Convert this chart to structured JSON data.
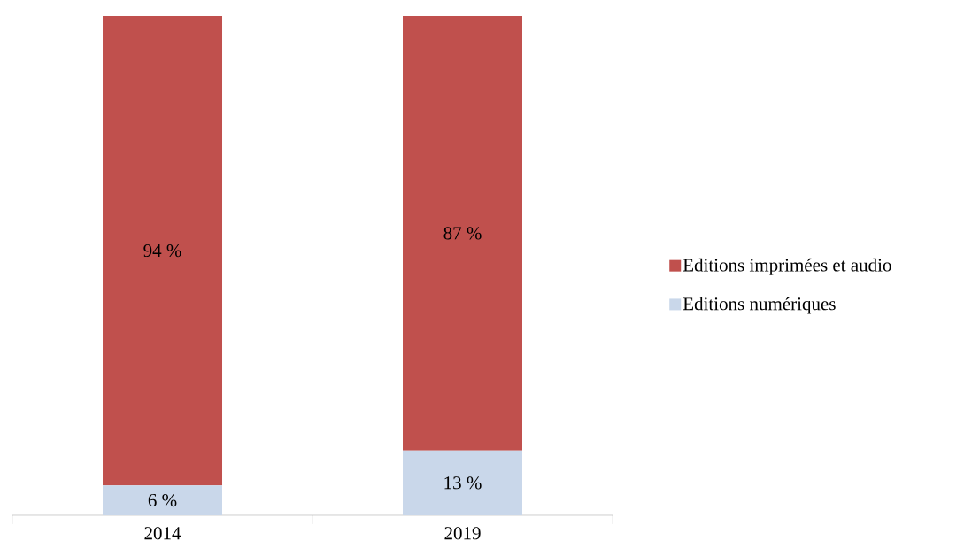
{
  "chart_data": {
    "type": "bar",
    "stacked": true,
    "categories": [
      "2014",
      "2019"
    ],
    "series": [
      {
        "name": "Editions numériques",
        "color": "#c9d7ea",
        "values": [
          6,
          13
        ],
        "value_labels": [
          "6 %",
          "13 %"
        ]
      },
      {
        "name": "Editions imprimées et audio",
        "color": "#c0504d",
        "values": [
          94,
          87
        ],
        "value_labels": [
          "94 %",
          "87 %"
        ]
      }
    ],
    "ylim": [
      0,
      100
    ],
    "legend": "right"
  }
}
